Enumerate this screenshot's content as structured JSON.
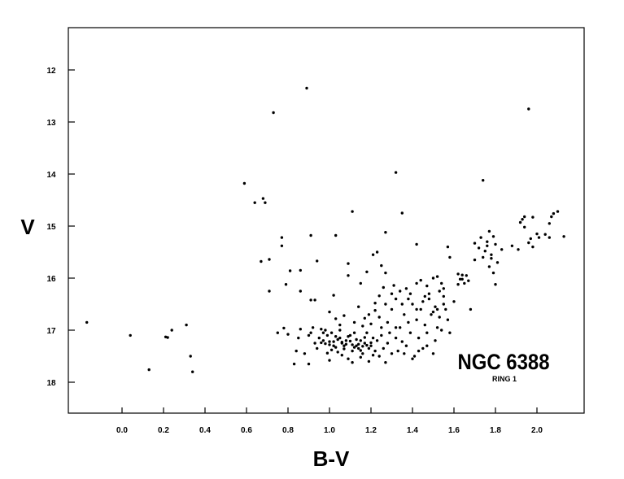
{
  "chart_data": {
    "type": "scatter",
    "title": "",
    "xlabel": "B-V",
    "ylabel": "V",
    "xlim": [
      -0.35,
      2.2
    ],
    "ylim": [
      18.6,
      11.2
    ],
    "y_inverted": true,
    "grid": false,
    "x_ticks": [
      {
        "value": 0.0,
        "label": "0.0"
      },
      {
        "value": 0.2,
        "label": "0.2"
      },
      {
        "value": 0.4,
        "label": "0.4"
      },
      {
        "value": 0.6,
        "label": "0.6"
      },
      {
        "value": 0.8,
        "label": "0.8"
      },
      {
        "value": 1.0,
        "label": "1.0"
      },
      {
        "value": 1.2,
        "label": "1.2"
      },
      {
        "value": 1.4,
        "label": "1.4"
      },
      {
        "value": 1.6,
        "label": "1.6"
      },
      {
        "value": 1.8,
        "label": "1.8"
      },
      {
        "value": 2.0,
        "label": "2.0"
      }
    ],
    "y_ticks": [
      {
        "value": 12,
        "label": "12"
      },
      {
        "value": 13,
        "label": "13"
      },
      {
        "value": 14,
        "label": "14"
      },
      {
        "value": 15,
        "label": "15"
      },
      {
        "value": 16,
        "label": "16"
      },
      {
        "value": 17,
        "label": "17"
      },
      {
        "value": 18,
        "label": "18"
      }
    ],
    "annotations": [
      {
        "text": "NGC 6388",
        "role": "main"
      },
      {
        "text": "RING 1",
        "role": "sub"
      }
    ],
    "points": [
      [
        -0.17,
        16.85
      ],
      [
        0.04,
        17.1
      ],
      [
        0.13,
        17.76
      ],
      [
        0.22,
        17.14
      ],
      [
        0.21,
        17.13
      ],
      [
        0.24,
        17.0
      ],
      [
        0.31,
        16.9
      ],
      [
        0.33,
        17.5
      ],
      [
        0.34,
        17.8
      ],
      [
        0.89,
        12.35
      ],
      [
        0.73,
        12.82
      ],
      [
        1.96,
        12.75
      ],
      [
        1.32,
        13.97
      ],
      [
        1.74,
        14.12
      ],
      [
        0.59,
        14.18
      ],
      [
        0.64,
        14.55
      ],
      [
        0.68,
        14.47
      ],
      [
        0.69,
        14.55
      ],
      [
        1.11,
        14.72
      ],
      [
        1.35,
        14.75
      ],
      [
        0.77,
        15.22
      ],
      [
        0.77,
        15.38
      ],
      [
        0.91,
        15.18
      ],
      [
        1.03,
        15.18
      ],
      [
        1.27,
        15.12
      ],
      [
        1.42,
        15.35
      ],
      [
        0.67,
        15.68
      ],
      [
        0.71,
        15.64
      ],
      [
        0.71,
        16.25
      ],
      [
        0.79,
        16.12
      ],
      [
        0.81,
        15.86
      ],
      [
        0.86,
        16.25
      ],
      [
        0.86,
        15.85
      ],
      [
        0.91,
        16.42
      ],
      [
        0.93,
        16.42
      ],
      [
        0.94,
        15.67
      ],
      [
        1.02,
        16.33
      ],
      [
        1.09,
        15.72
      ],
      [
        1.09,
        15.95
      ],
      [
        1.15,
        16.1
      ],
      [
        1.18,
        15.88
      ],
      [
        1.21,
        15.55
      ],
      [
        1.23,
        15.5
      ],
      [
        1.25,
        15.76
      ],
      [
        1.27,
        15.9
      ],
      [
        1.31,
        16.14
      ],
      [
        1.24,
        16.34
      ],
      [
        1.14,
        16.55
      ],
      [
        1.17,
        16.77
      ],
      [
        1.37,
        16.2
      ],
      [
        1.39,
        16.3
      ],
      [
        1.42,
        16.1
      ],
      [
        1.44,
        16.04
      ],
      [
        1.46,
        16.35
      ],
      [
        1.48,
        16.4
      ],
      [
        1.5,
        16.0
      ],
      [
        1.52,
        15.97
      ],
      [
        1.54,
        16.1
      ],
      [
        1.55,
        16.2
      ],
      [
        1.57,
        15.4
      ],
      [
        1.58,
        15.6
      ],
      [
        1.55,
        16.35
      ],
      [
        1.52,
        16.6
      ],
      [
        1.62,
        15.92
      ],
      [
        1.63,
        16.02
      ],
      [
        1.64,
        15.94
      ],
      [
        1.65,
        16.1
      ],
      [
        1.66,
        15.95
      ],
      [
        1.67,
        16.05
      ],
      [
        1.68,
        16.6
      ],
      [
        1.7,
        15.65
      ],
      [
        1.62,
        16.12
      ],
      [
        1.64,
        16.02
      ],
      [
        1.7,
        15.33
      ],
      [
        1.72,
        15.42
      ],
      [
        1.73,
        15.22
      ],
      [
        1.75,
        15.48
      ],
      [
        1.76,
        15.38
      ],
      [
        1.77,
        15.1
      ],
      [
        1.79,
        15.2
      ],
      [
        1.8,
        15.35
      ],
      [
        1.78,
        15.55
      ],
      [
        1.81,
        15.7
      ],
      [
        1.79,
        15.9
      ],
      [
        1.8,
        16.12
      ],
      [
        1.74,
        15.6
      ],
      [
        1.77,
        15.78
      ],
      [
        1.78,
        15.62
      ],
      [
        1.76,
        15.3
      ],
      [
        1.83,
        15.45
      ],
      [
        1.88,
        15.38
      ],
      [
        1.91,
        15.45
      ],
      [
        1.92,
        14.93
      ],
      [
        1.93,
        14.87
      ],
      [
        1.94,
        14.82
      ],
      [
        1.96,
        15.32
      ],
      [
        1.97,
        15.24
      ],
      [
        1.98,
        14.83
      ],
      [
        1.98,
        15.4
      ],
      [
        2.0,
        15.15
      ],
      [
        2.01,
        15.22
      ],
      [
        2.04,
        15.16
      ],
      [
        2.06,
        14.95
      ],
      [
        2.07,
        14.82
      ],
      [
        2.08,
        14.76
      ],
      [
        2.1,
        14.72
      ],
      [
        2.13,
        15.2
      ],
      [
        2.06,
        15.22
      ],
      [
        1.94,
        15.02
      ],
      [
        0.75,
        17.05
      ],
      [
        0.78,
        16.96
      ],
      [
        0.8,
        17.08
      ],
      [
        0.83,
        17.65
      ],
      [
        0.84,
        17.4
      ],
      [
        0.85,
        17.15
      ],
      [
        0.86,
        16.98
      ],
      [
        0.88,
        17.45
      ],
      [
        0.9,
        17.65
      ],
      [
        0.91,
        17.05
      ],
      [
        0.93,
        17.25
      ],
      [
        0.94,
        17.35
      ],
      [
        0.95,
        17.15
      ],
      [
        0.96,
        16.98
      ],
      [
        0.97,
        17.2
      ],
      [
        0.98,
        17.0
      ],
      [
        0.99,
        17.1
      ],
      [
        1.0,
        17.22
      ],
      [
        1.01,
        17.05
      ],
      [
        1.02,
        17.3
      ],
      [
        1.03,
        17.12
      ],
      [
        1.04,
        17.42
      ],
      [
        1.05,
        17.0
      ],
      [
        1.06,
        17.25
      ],
      [
        1.07,
        17.3
      ],
      [
        1.08,
        17.2
      ],
      [
        1.09,
        17.55
      ],
      [
        1.1,
        17.1
      ],
      [
        1.11,
        17.4
      ],
      [
        1.12,
        17.05
      ],
      [
        1.13,
        17.3
      ],
      [
        1.14,
        17.35
      ],
      [
        1.15,
        17.2
      ],
      [
        1.16,
        17.45
      ],
      [
        1.17,
        17.25
      ],
      [
        1.18,
        17.05
      ],
      [
        1.19,
        17.6
      ],
      [
        1.2,
        17.3
      ],
      [
        1.21,
        17.15
      ],
      [
        1.22,
        17.4
      ],
      [
        1.23,
        17.2
      ],
      [
        1.24,
        17.5
      ],
      [
        1.25,
        17.1
      ],
      [
        1.26,
        17.35
      ],
      [
        1.27,
        17.62
      ],
      [
        1.28,
        17.25
      ],
      [
        1.29,
        17.05
      ],
      [
        1.3,
        17.45
      ],
      [
        0.96,
        17.24
      ],
      [
        0.98,
        17.26
      ],
      [
        1.0,
        17.28
      ],
      [
        1.02,
        17.22
      ],
      [
        1.04,
        17.18
      ],
      [
        1.06,
        17.23
      ],
      [
        1.08,
        17.27
      ],
      [
        1.1,
        17.21
      ],
      [
        1.12,
        17.33
      ],
      [
        1.14,
        17.27
      ],
      [
        1.16,
        17.31
      ],
      [
        1.18,
        17.29
      ],
      [
        1.2,
        17.24
      ],
      [
        1.03,
        17.33
      ],
      [
        1.07,
        17.36
      ],
      [
        1.11,
        17.28
      ],
      [
        1.15,
        17.39
      ],
      [
        1.19,
        17.35
      ],
      [
        1.05,
        17.15
      ],
      [
        1.09,
        17.12
      ],
      [
        1.13,
        17.18
      ],
      [
        1.17,
        17.14
      ],
      [
        1.01,
        17.38
      ],
      [
        0.99,
        17.44
      ],
      [
        1.06,
        17.48
      ],
      [
        1.15,
        17.52
      ],
      [
        1.21,
        17.48
      ],
      [
        0.97,
        17.05
      ],
      [
        1.0,
        17.58
      ],
      [
        1.11,
        17.62
      ],
      [
        0.9,
        17.1
      ],
      [
        0.92,
        16.95
      ],
      [
        1.0,
        16.65
      ],
      [
        1.03,
        16.78
      ],
      [
        1.05,
        16.9
      ],
      [
        1.07,
        16.72
      ],
      [
        1.12,
        16.85
      ],
      [
        1.16,
        16.92
      ],
      [
        1.2,
        16.88
      ],
      [
        1.24,
        16.75
      ],
      [
        1.25,
        16.95
      ],
      [
        1.28,
        16.85
      ],
      [
        1.32,
        16.95
      ],
      [
        1.22,
        16.62
      ],
      [
        1.19,
        16.7
      ],
      [
        1.32,
        17.15
      ],
      [
        1.33,
        17.4
      ],
      [
        1.34,
        16.95
      ],
      [
        1.35,
        17.22
      ],
      [
        1.36,
        16.7
      ],
      [
        1.37,
        17.3
      ],
      [
        1.38,
        16.85
      ],
      [
        1.39,
        17.05
      ],
      [
        1.4,
        16.5
      ],
      [
        1.41,
        17.5
      ],
      [
        1.42,
        16.8
      ],
      [
        1.43,
        17.15
      ],
      [
        1.44,
        16.6
      ],
      [
        1.45,
        17.35
      ],
      [
        1.46,
        16.9
      ],
      [
        1.47,
        17.05
      ],
      [
        1.48,
        16.3
      ],
      [
        1.49,
        16.7
      ],
      [
        1.5,
        17.45
      ],
      [
        1.51,
        16.55
      ],
      [
        1.52,
        16.95
      ],
      [
        1.53,
        16.25
      ],
      [
        1.54,
        17.0
      ],
      [
        1.56,
        16.6
      ],
      [
        1.57,
        16.8
      ],
      [
        1.58,
        17.05
      ],
      [
        1.6,
        16.45
      ],
      [
        1.35,
        16.5
      ],
      [
        1.38,
        16.4
      ],
      [
        1.42,
        16.6
      ],
      [
        1.45,
        16.45
      ],
      [
        1.47,
        16.15
      ],
      [
        1.5,
        16.65
      ],
      [
        1.53,
        16.75
      ],
      [
        1.4,
        17.55
      ],
      [
        1.36,
        17.45
      ],
      [
        1.43,
        17.4
      ],
      [
        1.47,
        17.3
      ],
      [
        1.51,
        17.2
      ],
      [
        1.55,
        16.5
      ],
      [
        1.32,
        16.4
      ],
      [
        1.3,
        16.6
      ],
      [
        1.34,
        16.25
      ],
      [
        1.22,
        16.48
      ],
      [
        1.27,
        16.5
      ],
      [
        1.3,
        16.3
      ],
      [
        1.26,
        16.18
      ]
    ]
  }
}
